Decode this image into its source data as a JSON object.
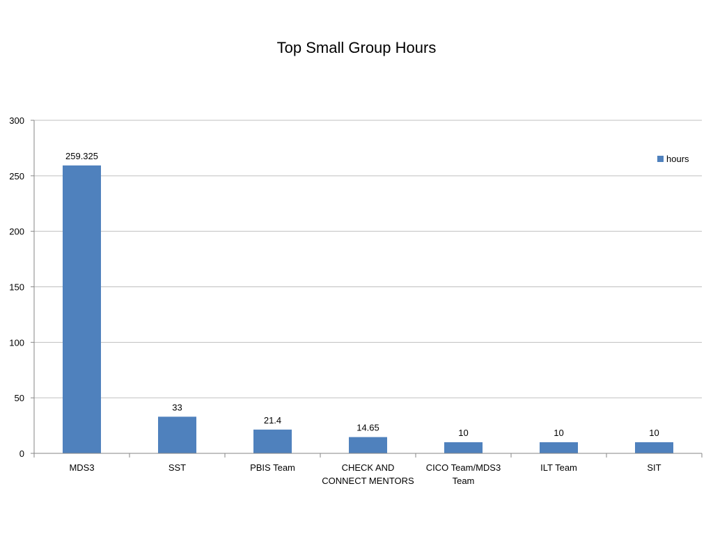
{
  "chart_data": {
    "type": "bar",
    "title": "Top Small Group Hours",
    "xlabel": "",
    "ylabel": "",
    "categories": [
      "MDS3",
      "SST",
      "PBIS Team",
      "CHECK AND CONNECT MENTORS",
      "CICO Team/MDS3 Team",
      "ILT Team",
      "SIT"
    ],
    "category_lines": [
      [
        "MDS3"
      ],
      [
        "SST"
      ],
      [
        "PBIS Team"
      ],
      [
        "CHECK AND",
        "CONNECT MENTORS"
      ],
      [
        "CICO Team/MDS3",
        "Team"
      ],
      [
        "ILT Team"
      ],
      [
        "SIT"
      ]
    ],
    "series": [
      {
        "name": "hours",
        "values": [
          259.325,
          33,
          21.4,
          14.65,
          10,
          10,
          10
        ]
      }
    ],
    "data_labels": [
      "259.325",
      "33",
      "21.4",
      "14.65",
      "10",
      "10",
      "10"
    ],
    "ylim": [
      0,
      300
    ],
    "yticks": [
      0,
      50,
      100,
      150,
      200,
      250,
      300
    ],
    "grid": true,
    "legend_position": "right",
    "colors": {
      "bar": "#4f81bd",
      "grid": "#bfbfbf",
      "axis": "#868686"
    }
  }
}
